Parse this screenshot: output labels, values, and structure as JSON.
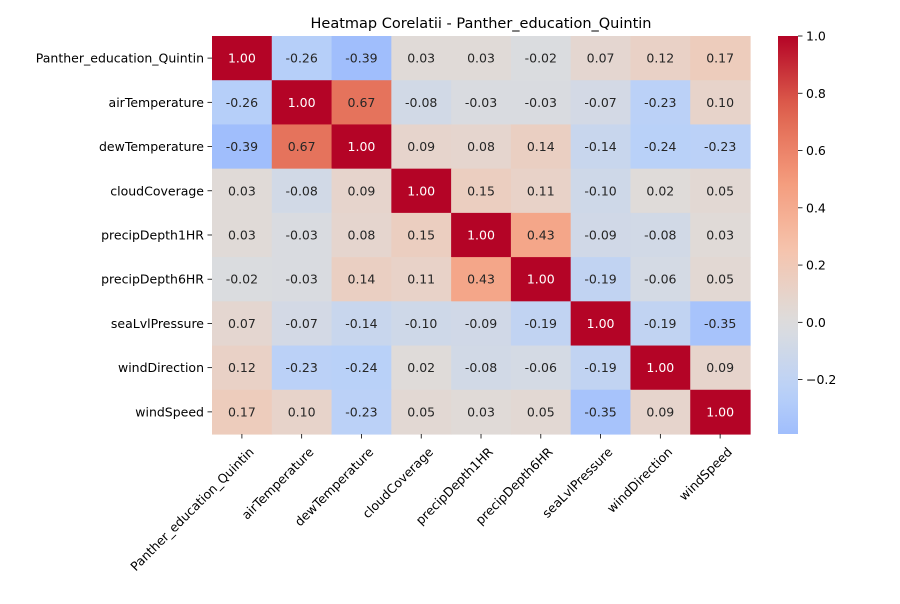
{
  "chart_data": {
    "type": "heatmap",
    "title": "Heatmap Corelatii - Panther_education_Quintin",
    "colormap": "coolwarm",
    "categories": [
      "Panther_education_Quintin",
      "airTemperature",
      "dewTemperature",
      "cloudCoverage",
      "precipDepth1HR",
      "precipDepth6HR",
      "seaLvlPressure",
      "windDirection",
      "windSpeed"
    ],
    "values": [
      [
        1.0,
        -0.26,
        -0.39,
        0.03,
        0.03,
        -0.02,
        0.07,
        0.12,
        0.17
      ],
      [
        -0.26,
        1.0,
        0.67,
        -0.08,
        -0.03,
        -0.03,
        -0.07,
        -0.23,
        0.1
      ],
      [
        -0.39,
        0.67,
        1.0,
        0.09,
        0.08,
        0.14,
        -0.14,
        -0.24,
        -0.23
      ],
      [
        0.03,
        -0.08,
        0.09,
        1.0,
        0.15,
        0.11,
        -0.1,
        0.02,
        0.05
      ],
      [
        0.03,
        -0.03,
        0.08,
        0.15,
        1.0,
        0.43,
        -0.09,
        -0.08,
        0.03
      ],
      [
        -0.02,
        -0.03,
        0.14,
        0.11,
        0.43,
        1.0,
        -0.19,
        -0.06,
        0.05
      ],
      [
        0.07,
        -0.07,
        -0.14,
        -0.1,
        -0.09,
        -0.19,
        1.0,
        -0.19,
        -0.35
      ],
      [
        0.12,
        -0.23,
        -0.24,
        0.02,
        -0.08,
        -0.06,
        -0.19,
        1.0,
        0.09
      ],
      [
        0.17,
        0.1,
        -0.23,
        0.05,
        0.03,
        0.05,
        -0.35,
        0.09,
        1.0
      ]
    ],
    "value_labels": [
      [
        "1.00",
        "-0.26",
        "-0.39",
        "0.03",
        "0.03",
        "-0.02",
        "0.07",
        "0.12",
        "0.17"
      ],
      [
        "-0.26",
        "1.00",
        "0.67",
        "-0.08",
        "-0.03",
        "-0.03",
        "-0.07",
        "-0.23",
        "0.10"
      ],
      [
        "-0.39",
        "0.67",
        "1.00",
        "0.09",
        "0.08",
        "0.14",
        "-0.14",
        "-0.24",
        "-0.23"
      ],
      [
        "0.03",
        "-0.08",
        "0.09",
        "1.00",
        "0.15",
        "0.11",
        "-0.10",
        "0.02",
        "0.05"
      ],
      [
        "0.03",
        "-0.03",
        "0.08",
        "0.15",
        "1.00",
        "0.43",
        "-0.09",
        "-0.08",
        "0.03"
      ],
      [
        "-0.02",
        "-0.03",
        "0.14",
        "0.11",
        "0.43",
        "1.00",
        "-0.19",
        "-0.06",
        "0.05"
      ],
      [
        "0.07",
        "-0.07",
        "-0.14",
        "-0.10",
        "-0.09",
        "-0.19",
        "1.00",
        "-0.19",
        "-0.35"
      ],
      [
        "0.12",
        "-0.23",
        "-0.24",
        "0.02",
        "-0.08",
        "-0.06",
        "-0.19",
        "1.00",
        "0.09"
      ],
      [
        "0.17",
        "0.10",
        "-0.23",
        "0.05",
        "0.03",
        "0.05",
        "-0.35",
        "0.09",
        "1.00"
      ]
    ],
    "colorbar": {
      "range": [
        -0.39,
        1.0
      ],
      "center": 0.0,
      "tick_values": [
        -0.2,
        0.0,
        0.2,
        0.4,
        0.6,
        0.8,
        1.0
      ],
      "tick_labels": [
        "−0.2",
        "0.0",
        "0.2",
        "0.4",
        "0.6",
        "0.8",
        "1.0"
      ]
    }
  }
}
